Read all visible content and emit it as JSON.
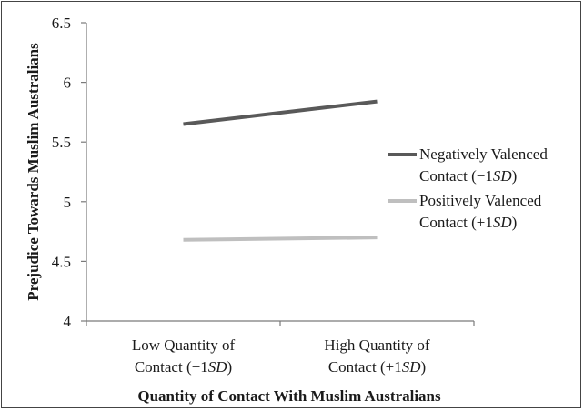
{
  "chart_data": {
    "type": "line",
    "xlabel": "Quantity of Contact With Muslim Australians",
    "ylabel": "Prejudice Towards Muslim Australians",
    "ylim": [
      4,
      6.5
    ],
    "yticks": [
      "4",
      "4.5",
      "5",
      "5.5",
      "6",
      "6.5"
    ],
    "categories": [
      [
        "Low Quantity of",
        "Contact (−1",
        "SD",
        ")"
      ],
      [
        "High Quantity of",
        "Contact (+1",
        "SD",
        ")"
      ]
    ],
    "series": [
      {
        "name_parts": [
          "Negatively Valenced",
          "Contact (−1",
          "SD",
          ")"
        ],
        "values": [
          5.65,
          5.84
        ],
        "color": "#595959"
      },
      {
        "name_parts": [
          "Positively Valenced",
          "Contact (+1",
          "SD",
          ")"
        ],
        "values": [
          4.68,
          4.7
        ],
        "color": "#bfbfbf"
      }
    ],
    "grid": false,
    "legend_position": "right"
  }
}
